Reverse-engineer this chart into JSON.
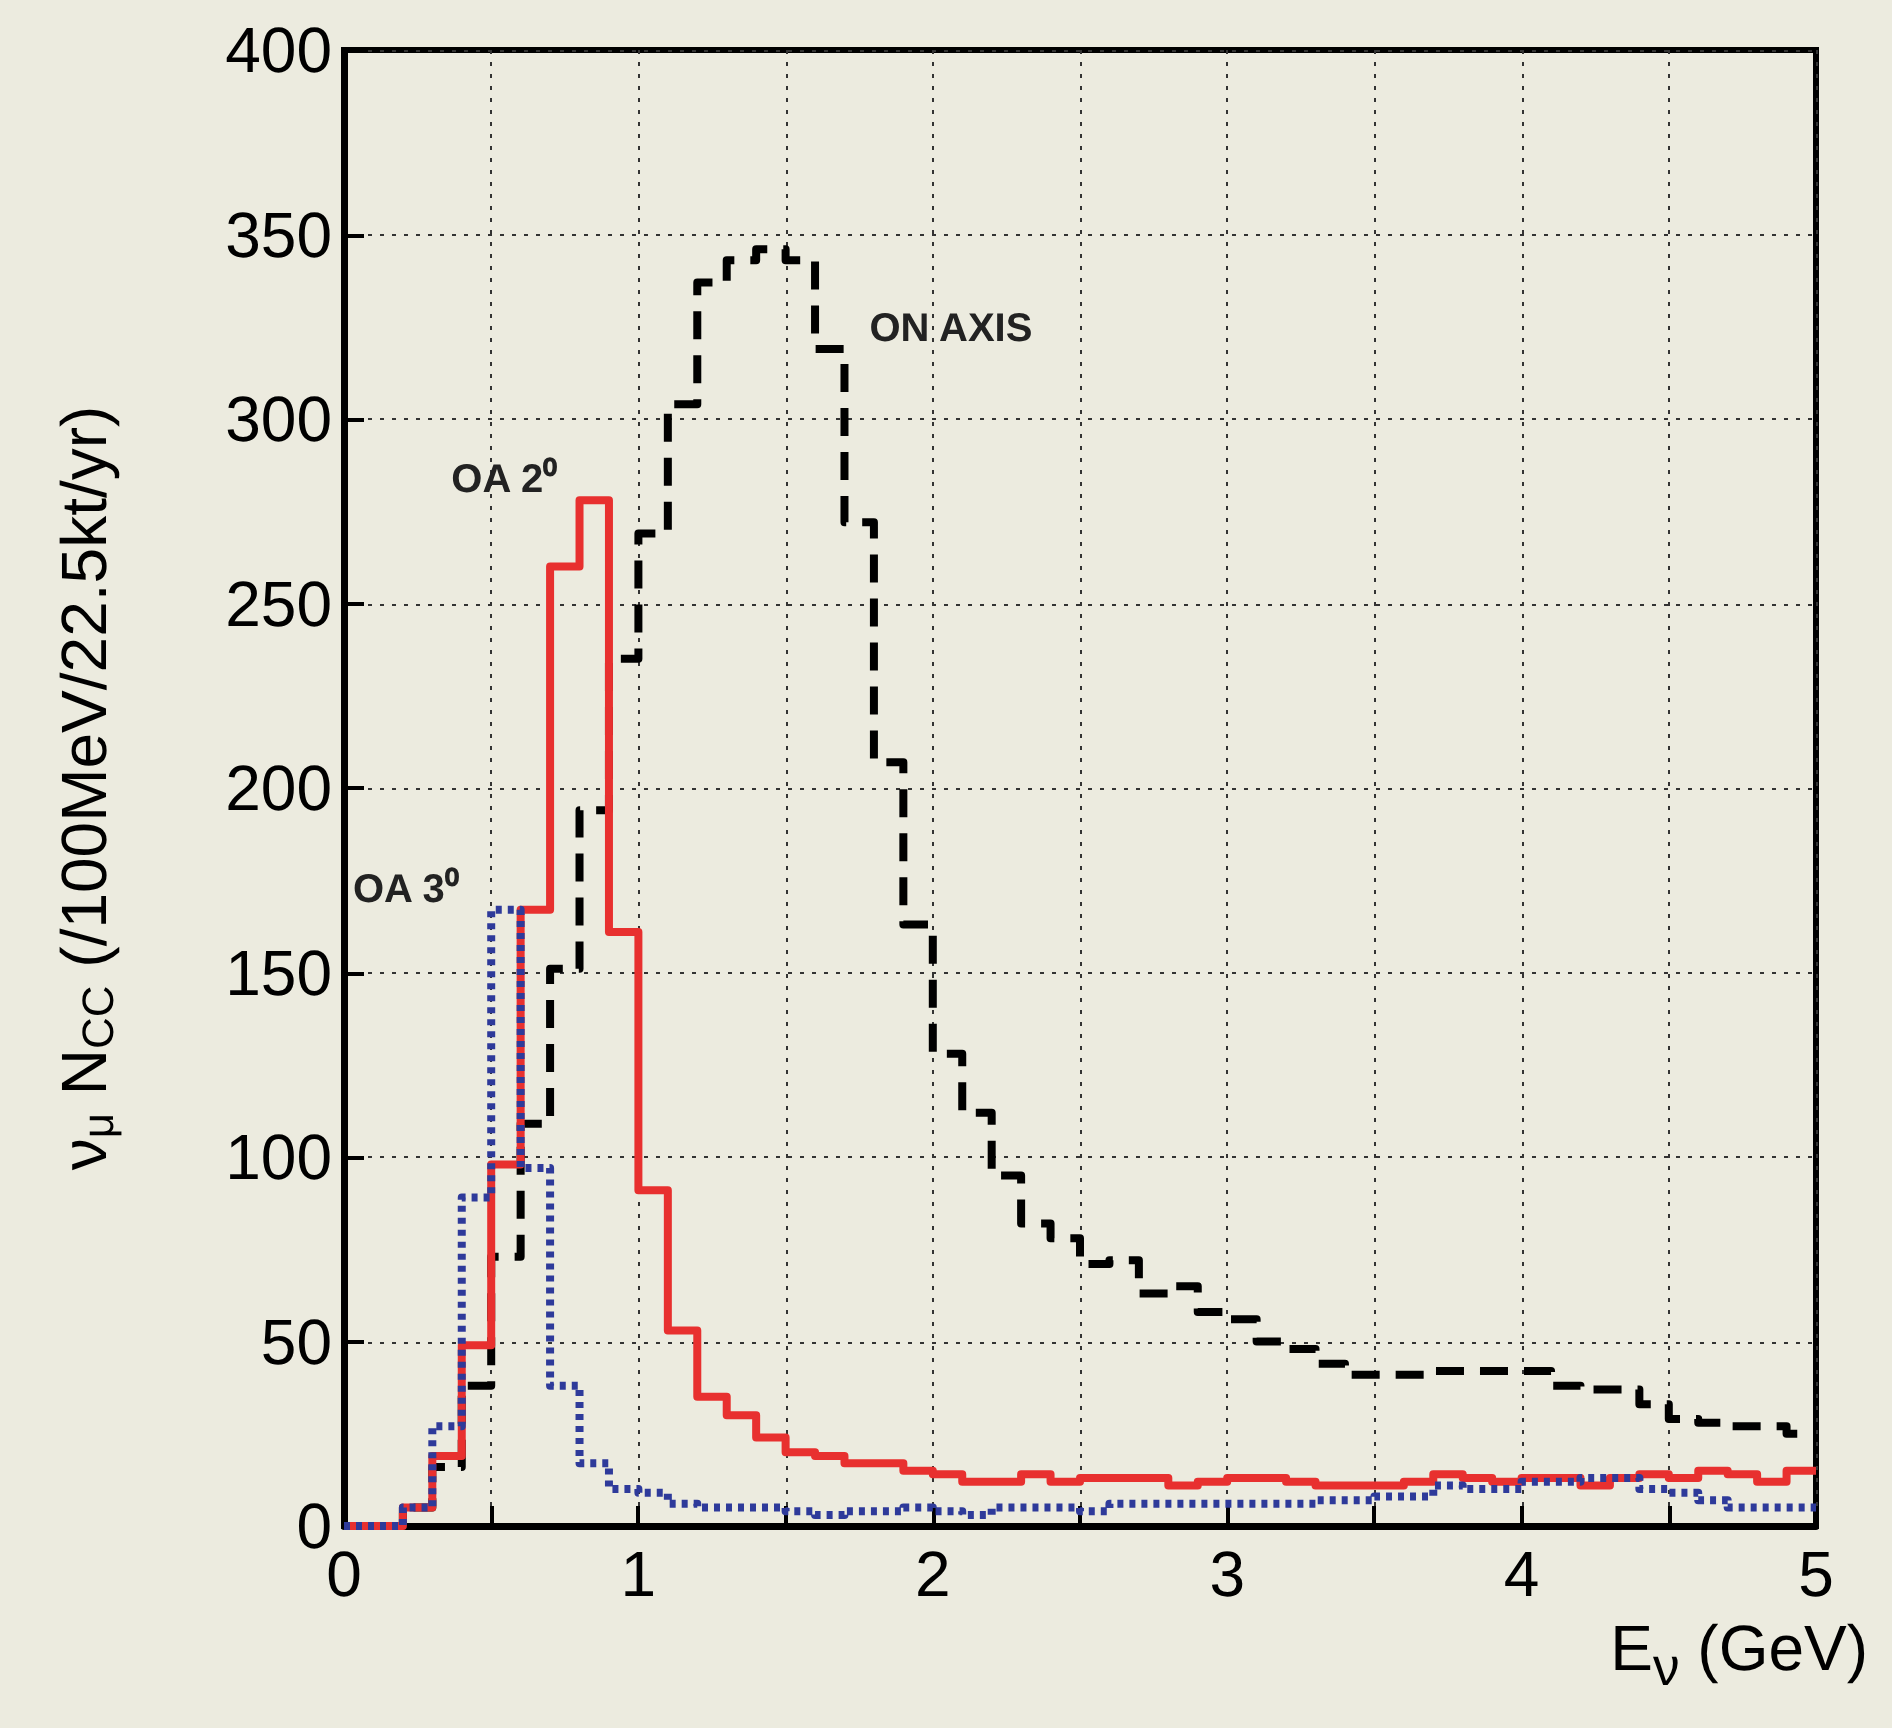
{
  "chart_data": {
    "type": "histogram",
    "xlabel": "E$_{ν}$ (GeV)",
    "ylabel": "ν$_{μ}$ N$_{CC}$ (/100MeV/22.5kt/yr)",
    "bins": [
      0,
      0.1,
      0.2,
      0.3,
      0.4,
      0.5,
      0.6,
      0.7,
      0.8,
      0.9,
      1,
      1.1,
      1.2,
      1.3,
      1.4,
      1.5,
      1.6,
      1.7,
      1.8,
      1.9,
      2,
      2.1,
      2.2,
      2.3,
      2.4,
      2.5,
      2.6,
      2.7,
      2.8,
      2.9,
      3,
      3.1,
      3.2,
      3.3,
      3.4,
      3.5,
      3.6,
      3.7,
      3.8,
      3.9,
      4,
      4.1,
      4.2,
      4.3,
      4.4,
      4.5,
      4.6,
      4.7,
      4.8,
      4.9,
      5
    ],
    "series": [
      {
        "name": "ON AXIS",
        "color": "#000000",
        "line_style": "dashed",
        "values": [
          0,
          0,
          5,
          16,
          38,
          73,
          109,
          151,
          194,
          235,
          269,
          304,
          337,
          343,
          346,
          343,
          319,
          272,
          207,
          163,
          128,
          112,
          95,
          82,
          78,
          71,
          72,
          63,
          65,
          58,
          56,
          50,
          48,
          44,
          41,
          41,
          41,
          42,
          42,
          42,
          42,
          38,
          37,
          37,
          33,
          29,
          28,
          27,
          27,
          25
        ]
      },
      {
        "name": "OA 2⁰",
        "color": "#e8302f",
        "line_style": "solid",
        "values": [
          0,
          0,
          5,
          19,
          49,
          98,
          167,
          260,
          278,
          161,
          91,
          53,
          35,
          30,
          24,
          20,
          19,
          17,
          17,
          15,
          14,
          12,
          12,
          14,
          12,
          13,
          13,
          13,
          11,
          12,
          13,
          13,
          12,
          11,
          11,
          11,
          12,
          14,
          13,
          12,
          13,
          13,
          11,
          13,
          14,
          13,
          15,
          14,
          12,
          15
        ]
      },
      {
        "name": "OA 3⁰",
        "color": "#2e3a9a",
        "line_style": "dotted",
        "values": [
          0,
          0,
          5,
          27,
          89,
          167,
          97,
          38,
          17,
          10,
          9,
          6,
          5,
          5,
          5,
          4,
          3,
          4,
          4,
          5,
          4,
          3,
          5,
          5,
          5,
          4,
          6,
          6,
          6,
          6,
          6,
          6,
          6,
          7,
          7,
          8,
          8,
          11,
          10,
          10,
          12,
          12,
          13,
          13,
          10,
          9,
          7,
          5,
          5,
          5
        ]
      }
    ],
    "xlim": [
      0,
      5
    ],
    "xticks": [
      0,
      {
        "value": 0.5,
        "label": null
      },
      1,
      {
        "value": 1.5,
        "label": null
      },
      2,
      {
        "value": 2.5,
        "label": null
      },
      3,
      {
        "value": 3.5,
        "label": null
      },
      4,
      {
        "value": 4.5,
        "label": null
      },
      5
    ],
    "ylim": [
      0,
      400
    ],
    "yticks": [
      0,
      50,
      100,
      150,
      200,
      250,
      300,
      350,
      400
    ],
    "grid": true,
    "legend": false
  }
}
